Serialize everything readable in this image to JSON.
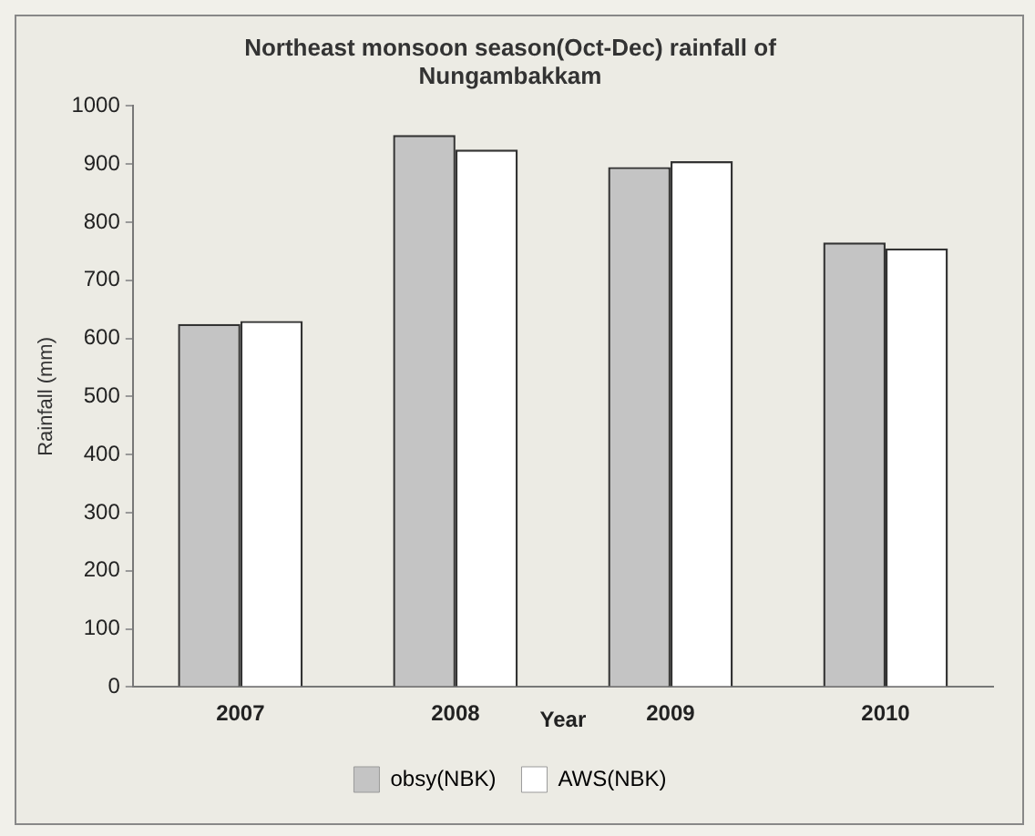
{
  "chart_data": {
    "type": "bar",
    "title": [
      "Northeast monsoon season(Oct-Dec) rainfall of",
      "Nungambakkam"
    ],
    "xlabel": "Year",
    "ylabel": "Rainfall (mm)",
    "categories": [
      "2007",
      "2008",
      "2009",
      "2010"
    ],
    "series": [
      {
        "name": "obsy(NBK)",
        "color": "#c4c4c4",
        "values": [
          625,
          950,
          895,
          765
        ]
      },
      {
        "name": "AWS(NBK)",
        "color": "#ffffff",
        "values": [
          630,
          925,
          905,
          755
        ]
      }
    ],
    "ylim": [
      0,
      1000
    ],
    "yticks": [
      0,
      100,
      200,
      300,
      400,
      500,
      600,
      700,
      800,
      900,
      1000
    ],
    "grid": false,
    "legend": "bottom"
  }
}
